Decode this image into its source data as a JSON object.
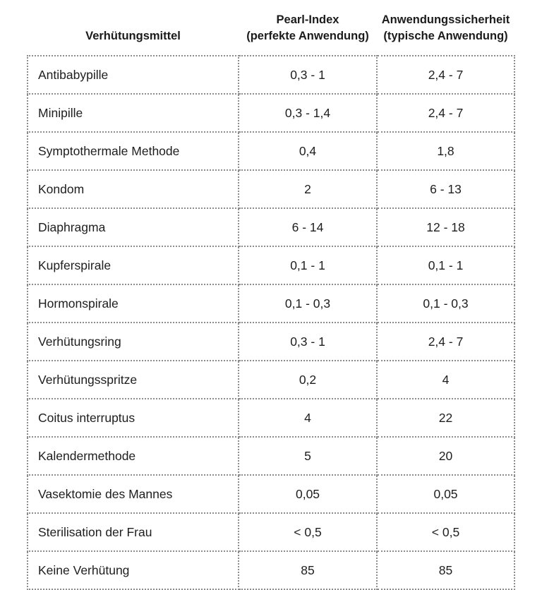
{
  "colors": {
    "background": "#ffffff",
    "text": "#1e1e1e",
    "header_text": "#1b1b1b",
    "dotted_border": "#8c8c8c"
  },
  "table": {
    "columns": [
      {
        "line1": "",
        "line2": "Verhütungsmittel"
      },
      {
        "line1": "Pearl-Index",
        "line2": "(perfekte Anwendung)"
      },
      {
        "line1": "Anwendungssicherheit",
        "line2": "(typische Anwendung)"
      }
    ],
    "rows": [
      {
        "method": "Antibabypille",
        "pearl_perfect": "0,3 - 1",
        "pearl_typical": "2,4 - 7"
      },
      {
        "method": "Minipille",
        "pearl_perfect": "0,3 - 1,4",
        "pearl_typical": "2,4 - 7"
      },
      {
        "method": "Symptothermale Methode",
        "pearl_perfect": "0,4",
        "pearl_typical": "1,8"
      },
      {
        "method": "Kondom",
        "pearl_perfect": "2",
        "pearl_typical": "6 - 13"
      },
      {
        "method": "Diaphragma",
        "pearl_perfect": "6 - 14",
        "pearl_typical": "12 - 18"
      },
      {
        "method": "Kupferspirale",
        "pearl_perfect": "0,1 - 1",
        "pearl_typical": "0,1 - 1"
      },
      {
        "method": "Hormonspirale",
        "pearl_perfect": "0,1 - 0,3",
        "pearl_typical": "0,1 - 0,3"
      },
      {
        "method": "Verhütungsring",
        "pearl_perfect": "0,3 - 1",
        "pearl_typical": "2,4 - 7"
      },
      {
        "method": "Verhütungsspritze",
        "pearl_perfect": "0,2",
        "pearl_typical": "4"
      },
      {
        "method": "Coitus interruptus",
        "pearl_perfect": "4",
        "pearl_typical": "22"
      },
      {
        "method": "Kalendermethode",
        "pearl_perfect": "5",
        "pearl_typical": "20"
      },
      {
        "method": "Vasektomie des Mannes",
        "pearl_perfect": "0,05",
        "pearl_typical": "0,05"
      },
      {
        "method": "Sterilisation der Frau",
        "pearl_perfect": "< 0,5",
        "pearl_typical": "< 0,5"
      },
      {
        "method": "Keine Verhütung",
        "pearl_perfect": "85",
        "pearl_typical": "85"
      }
    ]
  },
  "chart_data": {
    "type": "table",
    "title": "",
    "columns": [
      "Verhütungsmittel",
      "Pearl-Index (perfekte Anwendung)",
      "Anwendungssicherheit (typische Anwendung)"
    ],
    "rows": [
      [
        "Antibabypille",
        "0,3 - 1",
        "2,4 - 7"
      ],
      [
        "Minipille",
        "0,3 - 1,4",
        "2,4 - 7"
      ],
      [
        "Symptothermale Methode",
        "0,4",
        "1,8"
      ],
      [
        "Kondom",
        "2",
        "6 - 13"
      ],
      [
        "Diaphragma",
        "6 - 14",
        "12 - 18"
      ],
      [
        "Kupferspirale",
        "0,1 - 1",
        "0,1 - 1"
      ],
      [
        "Hormonspirale",
        "0,1 - 0,3",
        "0,1 - 0,3"
      ],
      [
        "Verhütungsring",
        "0,3 - 1",
        "2,4 - 7"
      ],
      [
        "Verhütungsspritze",
        "0,2",
        "4"
      ],
      [
        "Coitus interruptus",
        "4",
        "22"
      ],
      [
        "Kalendermethode",
        "5",
        "20"
      ],
      [
        "Vasektomie des Mannes",
        "0,05",
        "0,05"
      ],
      [
        "Sterilisation der Frau",
        "< 0,5",
        "< 0,5"
      ],
      [
        "Keine Verhütung",
        "85",
        "85"
      ]
    ]
  }
}
